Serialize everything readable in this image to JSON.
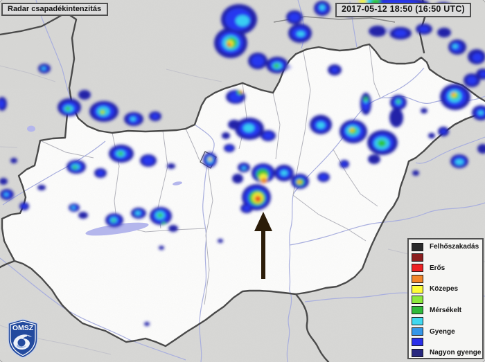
{
  "header": {
    "title": "Radar csapadékintenzitás",
    "timestamp": "2017-05-12 18:50 (16:50 UTC)"
  },
  "legend": {
    "items": [
      {
        "color": "#2b2b2b",
        "label": "Felhőszakadás"
      },
      {
        "color": "#8c1f1f",
        "label": ""
      },
      {
        "color": "#ed2224",
        "label": "Erős"
      },
      {
        "color": "#f3862b",
        "label": ""
      },
      {
        "color": "#fdfd38",
        "label": "Közepes"
      },
      {
        "color": "#8ce93c",
        "label": ""
      },
      {
        "color": "#2fba3a",
        "label": "Mérsékelt"
      },
      {
        "color": "#40d8f0",
        "label": ""
      },
      {
        "color": "#3596e8",
        "label": "Gyenge"
      },
      {
        "color": "#2a2fe8",
        "label": ""
      },
      {
        "color": "#28287f",
        "label": "Nagyon gyenge"
      }
    ]
  },
  "logo": {
    "text": "OMSZ"
  },
  "colors": {
    "box_border": "#4f4f4f",
    "land_outside": "#d8d8d6",
    "land_hungary": "#fdfdfc",
    "country_border": "#4a4a4a",
    "river": "#a8aede",
    "lake": "#b4b6ec",
    "arrow": "#2b1c08"
  }
}
